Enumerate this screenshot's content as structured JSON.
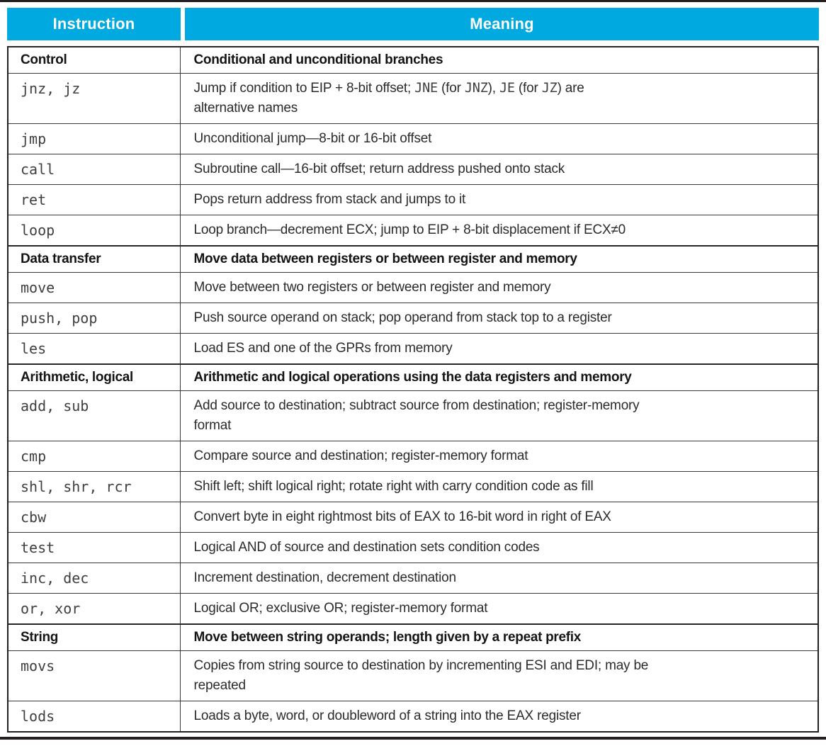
{
  "header": {
    "instruction_label": "Instruction",
    "meaning_label": "Meaning"
  },
  "colors": {
    "header_bg": "#00A9E0",
    "header_text": "#FFFFFF",
    "rule_color": "#231F20",
    "body_text": "#2B2B2B",
    "mono_text": "#3F3F3F"
  },
  "table": {
    "rows": [
      {
        "type": "category",
        "instruction": "Control",
        "meaning": [
          [
            {
              "code": false,
              "text": "Conditional and unconditional branches"
            }
          ]
        ]
      },
      {
        "type": "instruction",
        "instruction": "jnz, jz",
        "meaning": [
          [
            {
              "code": false,
              "text": "Jump if condition to EIP + 8-bit offset; "
            },
            {
              "code": true,
              "text": "JNE"
            },
            {
              "code": false,
              "text": " (for "
            },
            {
              "code": true,
              "text": "JNZ"
            },
            {
              "code": false,
              "text": "), "
            },
            {
              "code": true,
              "text": "JE"
            },
            {
              "code": false,
              "text": " (for "
            },
            {
              "code": true,
              "text": "JZ"
            },
            {
              "code": false,
              "text": ") are"
            }
          ],
          [
            {
              "code": false,
              "text": "alternative names"
            }
          ]
        ]
      },
      {
        "type": "instruction",
        "instruction": "jmp",
        "meaning": [
          [
            {
              "code": false,
              "text": "Unconditional jump—8-bit or 16-bit offset"
            }
          ]
        ]
      },
      {
        "type": "instruction",
        "instruction": "call",
        "meaning": [
          [
            {
              "code": false,
              "text": "Subroutine call—16-bit offset; return address pushed onto stack"
            }
          ]
        ]
      },
      {
        "type": "instruction",
        "instruction": "ret",
        "meaning": [
          [
            {
              "code": false,
              "text": "Pops return address from stack and jumps to it"
            }
          ]
        ]
      },
      {
        "type": "instruction",
        "instruction": "loop",
        "meaning": [
          [
            {
              "code": false,
              "text": "Loop branch—decrement ECX; jump to EIP + 8-bit displacement if ECX≠0"
            }
          ]
        ]
      },
      {
        "type": "category",
        "instruction": "Data transfer",
        "meaning": [
          [
            {
              "code": false,
              "text": "Move data between registers or between register and memory"
            }
          ]
        ]
      },
      {
        "type": "instruction",
        "instruction": "move",
        "meaning": [
          [
            {
              "code": false,
              "text": "Move between two registers or between register and memory"
            }
          ]
        ]
      },
      {
        "type": "instruction",
        "instruction": "push, pop",
        "meaning": [
          [
            {
              "code": false,
              "text": "Push source operand on stack; pop operand from stack top to a register"
            }
          ]
        ]
      },
      {
        "type": "instruction",
        "instruction": "les",
        "meaning": [
          [
            {
              "code": false,
              "text": "Load ES and one of the GPRs from memory"
            }
          ]
        ]
      },
      {
        "type": "category",
        "instruction": "Arithmetic, logical",
        "meaning": [
          [
            {
              "code": false,
              "text": "Arithmetic and logical operations using the data registers and memory"
            }
          ]
        ]
      },
      {
        "type": "instruction",
        "instruction": "add, sub",
        "meaning": [
          [
            {
              "code": false,
              "text": "Add source to destination; subtract source from destination; register-memory"
            }
          ],
          [
            {
              "code": false,
              "text": "format"
            }
          ]
        ]
      },
      {
        "type": "instruction",
        "instruction": "cmp",
        "meaning": [
          [
            {
              "code": false,
              "text": "Compare source and destination; register-memory format"
            }
          ]
        ]
      },
      {
        "type": "instruction",
        "instruction": "shl, shr, rcr",
        "meaning": [
          [
            {
              "code": false,
              "text": "Shift left; shift logical right; rotate right with carry condition code as fill"
            }
          ]
        ]
      },
      {
        "type": "instruction",
        "instruction": "cbw",
        "meaning": [
          [
            {
              "code": false,
              "text": "Convert byte in eight rightmost bits of EAX to 16-bit word in right of EAX"
            }
          ]
        ]
      },
      {
        "type": "instruction",
        "instruction": "test",
        "meaning": [
          [
            {
              "code": false,
              "text": "Logical AND of source and destination sets condition codes"
            }
          ]
        ]
      },
      {
        "type": "instruction",
        "instruction": "inc, dec",
        "meaning": [
          [
            {
              "code": false,
              "text": "Increment destination, decrement destination"
            }
          ]
        ]
      },
      {
        "type": "instruction",
        "instruction": "or, xor",
        "meaning": [
          [
            {
              "code": false,
              "text": "Logical OR; exclusive OR; register-memory format"
            }
          ]
        ]
      },
      {
        "type": "category",
        "instruction": "String",
        "meaning": [
          [
            {
              "code": false,
              "text": "Move between string operands; length given by a repeat prefix"
            }
          ]
        ]
      },
      {
        "type": "instruction",
        "instruction": "movs",
        "meaning": [
          [
            {
              "code": false,
              "text": "Copies from string source to destination by incrementing ESI and EDI; may be"
            }
          ],
          [
            {
              "code": false,
              "text": "repeated"
            }
          ]
        ]
      },
      {
        "type": "instruction",
        "instruction": "lods",
        "meaning": [
          [
            {
              "code": false,
              "text": "Loads a byte, word, or doubleword of a string into the EAX register"
            }
          ]
        ]
      }
    ]
  }
}
